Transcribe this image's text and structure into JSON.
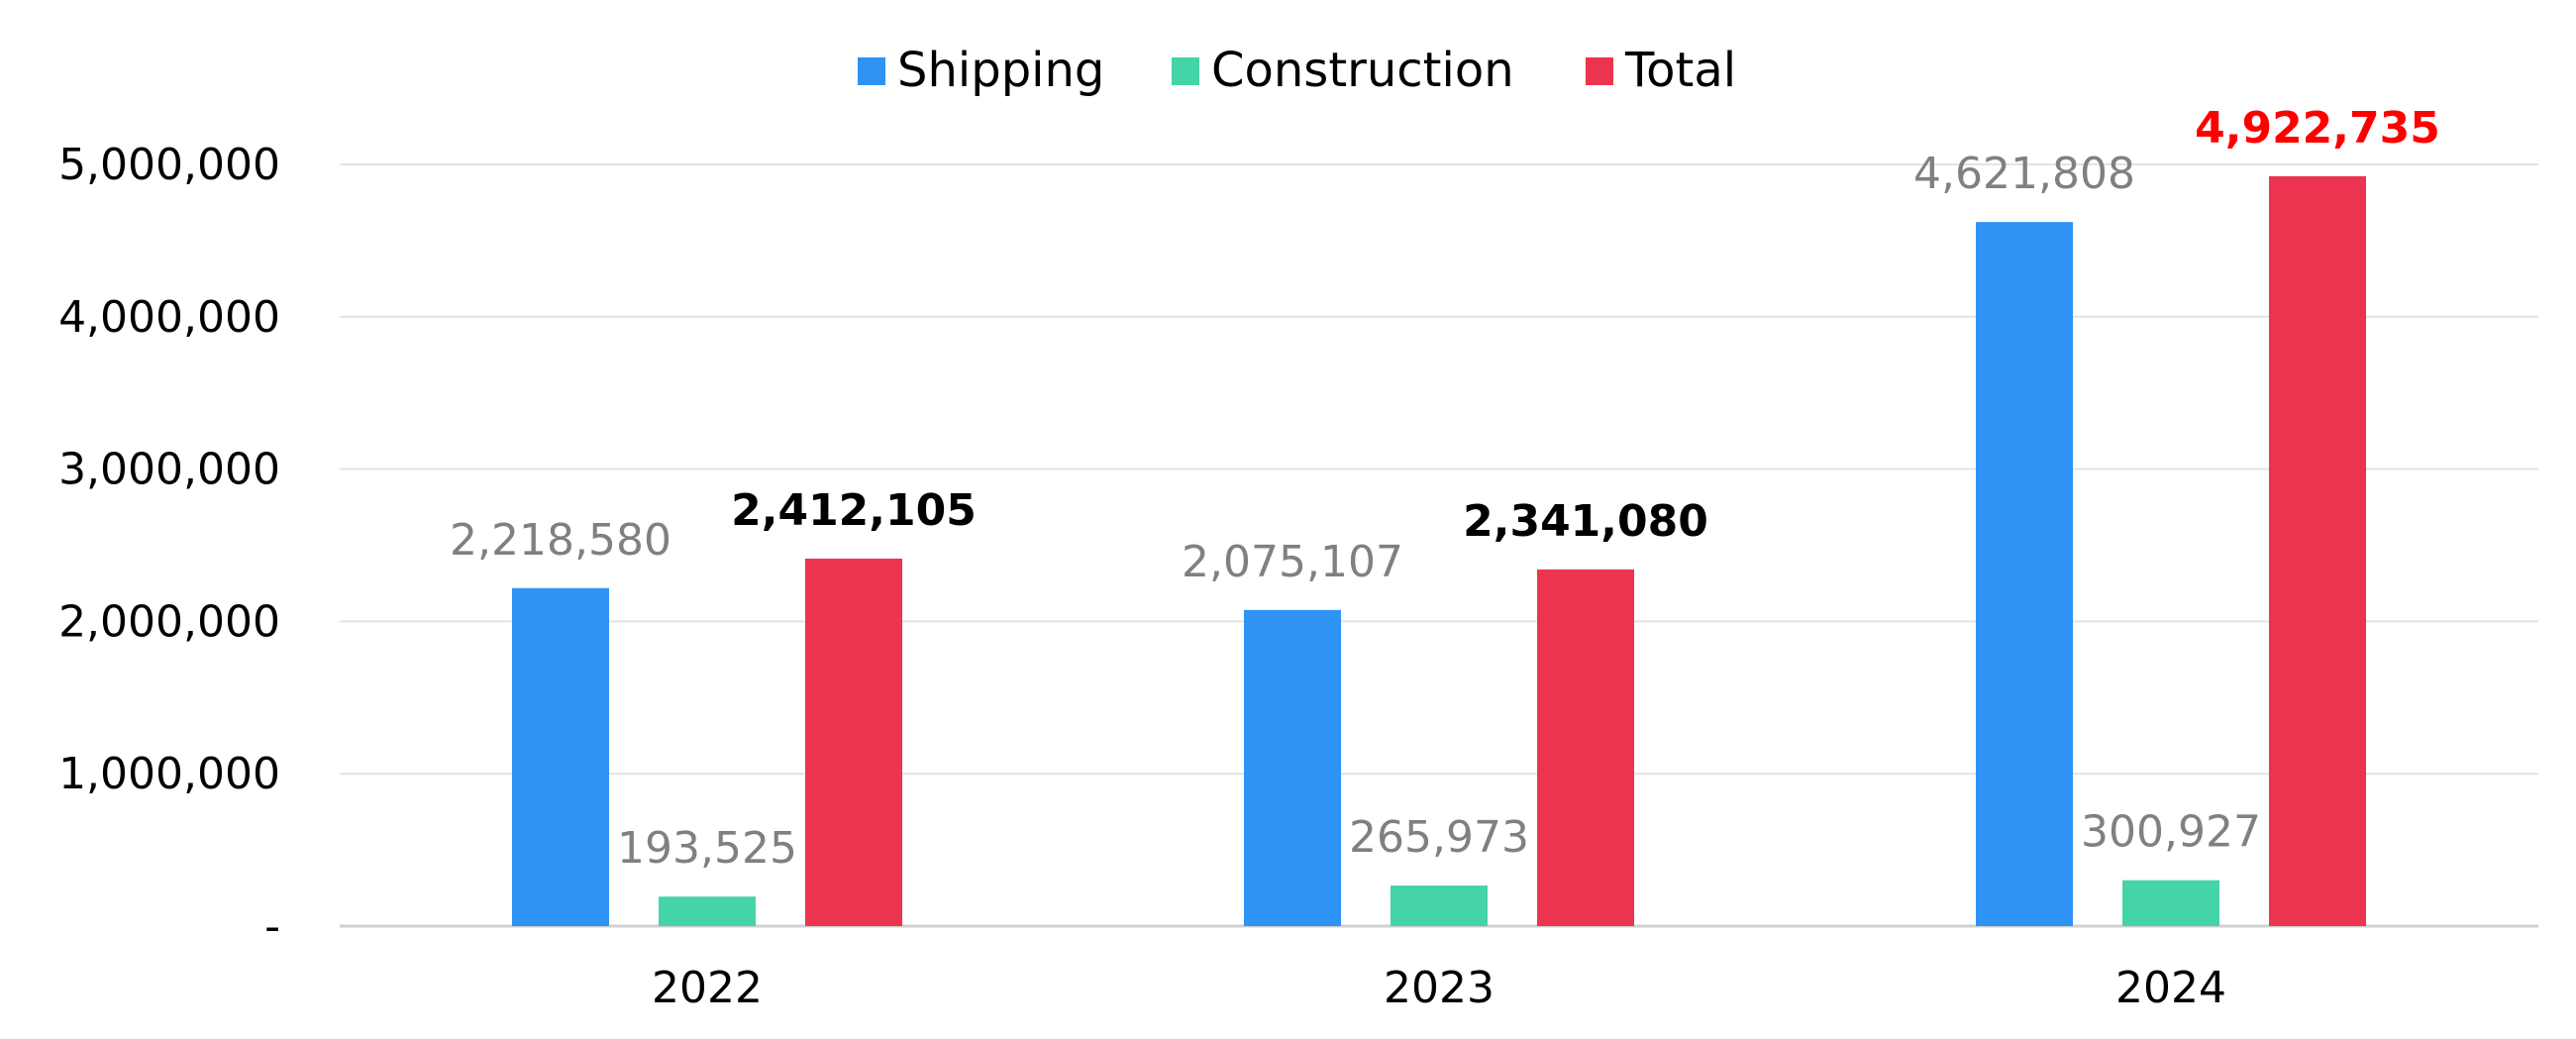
{
  "chart_data": {
    "type": "bar",
    "categories": [
      "2022",
      "2023",
      "2024"
    ],
    "series": [
      {
        "name": "Shipping",
        "color": "#2e93f4",
        "values": [
          2218580,
          2075107,
          4621808
        ]
      },
      {
        "name": "Construction",
        "color": "#45d3a8",
        "values": [
          193525,
          265973,
          300927
        ]
      },
      {
        "name": "Total",
        "color": "#ec3450",
        "values": [
          2412105,
          2341080,
          4922735
        ]
      }
    ],
    "data_labels": [
      [
        "2,218,580",
        "2,075,107",
        "4,621,808"
      ],
      [
        "193,525",
        "265,973",
        "300,927"
      ],
      [
        "2,412,105",
        "2,341,080",
        "4,922,735"
      ]
    ],
    "data_label_colors": [
      [
        "#808080",
        "#808080",
        "#808080"
      ],
      [
        "#808080",
        "#808080",
        "#808080"
      ],
      [
        "#000000",
        "#000000",
        "#ff0000"
      ]
    ],
    "data_label_bold": [
      false,
      false,
      true
    ],
    "y_ticks": [
      0,
      1000000,
      2000000,
      3000000,
      4000000,
      5000000
    ],
    "y_tick_labels": [
      "-",
      "1,000,000",
      "2,000,000",
      "3,000,000",
      "4,000,000",
      "5,000,000"
    ],
    "ylim": [
      0,
      5000000
    ],
    "grid": true,
    "legend_position": "top-center",
    "title": "",
    "xlabel": "",
    "ylabel": ""
  }
}
